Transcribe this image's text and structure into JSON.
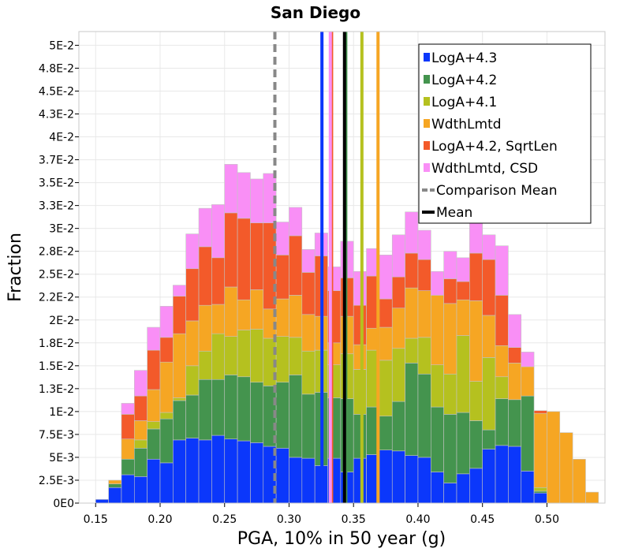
{
  "chart_data": {
    "type": "bar",
    "subtype": "stacked-histogram",
    "title": "San Diego",
    "xlabel": "PGA, 10% in 50 year (g)",
    "ylabel": "Fraction",
    "xlim": [
      0.137,
      0.545
    ],
    "ylim": [
      0,
      0.0515
    ],
    "bin_width": 0.01,
    "bin_starts": [
      0.15,
      0.16,
      0.17,
      0.18,
      0.19,
      0.2,
      0.21,
      0.22,
      0.23,
      0.24,
      0.25,
      0.26,
      0.27,
      0.28,
      0.29,
      0.3,
      0.31,
      0.32,
      0.33,
      0.34,
      0.35,
      0.36,
      0.37,
      0.38,
      0.39,
      0.4,
      0.41,
      0.42,
      0.43,
      0.44,
      0.45,
      0.46,
      0.47,
      0.48,
      0.49,
      0.5,
      0.51,
      0.52,
      0.53,
      0.54
    ],
    "x_ticks": [
      0.15,
      0.2,
      0.25,
      0.3,
      0.35,
      0.4,
      0.45,
      0.5
    ],
    "x_tick_labels": [
      "0.15",
      "0.20",
      "0.25",
      "0.30",
      "0.35",
      "0.40",
      "0.45",
      "0.50"
    ],
    "y_ticks": [
      0,
      0.0025,
      0.005,
      0.0075,
      0.01,
      0.0125,
      0.015,
      0.0175,
      0.02,
      0.0225,
      0.025,
      0.0275,
      0.03,
      0.0325,
      0.035,
      0.0375,
      0.04,
      0.0425,
      0.045,
      0.0475,
      0.05
    ],
    "y_tick_labels": [
      "0E0",
      "2.5E-3",
      "5E-3",
      "7.5E-3",
      "1E-2",
      "1.3E-2",
      "1.5E-2",
      "1.8E-2",
      "2E-2",
      "2.2E-2",
      "2.5E-2",
      "2.8E-2",
      "3E-2",
      "3.3E-2",
      "3.5E-2",
      "3.7E-2",
      "4E-2",
      "4.3E-2",
      "4.5E-2",
      "4.8E-2",
      "5E-2"
    ],
    "series": [
      {
        "name": "LogA+4.3",
        "color": "#0b37fb",
        "values": [
          0.0004,
          0.0017,
          0.0031,
          0.0029,
          0.0048,
          0.0044,
          0.0069,
          0.0071,
          0.0069,
          0.0074,
          0.007,
          0.0068,
          0.0066,
          0.0062,
          0.006,
          0.005,
          0.0049,
          0.0041,
          0.0049,
          0.0034,
          0.0049,
          0.0053,
          0.0058,
          0.0057,
          0.0052,
          0.005,
          0.0034,
          0.0022,
          0.0032,
          0.0038,
          0.0059,
          0.0063,
          0.0062,
          0.0035,
          0.0011,
          0.0,
          0.0,
          0.0,
          0.0,
          0.0
        ]
      },
      {
        "name": "LogA+4.2",
        "color": "#44944e",
        "values": [
          0.0,
          0.0004,
          0.0017,
          0.0031,
          0.0033,
          0.0048,
          0.0043,
          0.0047,
          0.0066,
          0.0061,
          0.007,
          0.007,
          0.0066,
          0.0066,
          0.0072,
          0.009,
          0.007,
          0.008,
          0.0066,
          0.008,
          0.0048,
          0.0052,
          0.0037,
          0.0054,
          0.0101,
          0.0091,
          0.0071,
          0.0075,
          0.0067,
          0.0052,
          0.0021,
          0.0051,
          0.0051,
          0.0082,
          0.0002,
          0.0,
          0.0,
          0.0,
          0.0,
          0.0
        ]
      },
      {
        "name": "LogA+4.1",
        "color": "#b5c11f",
        "values": [
          0.0,
          0.0,
          0.0,
          0.0009,
          0.0008,
          0.0007,
          0.0003,
          0.0032,
          0.0031,
          0.005,
          0.0042,
          0.0051,
          0.0058,
          0.0052,
          0.005,
          0.0041,
          0.0047,
          0.0046,
          0.0036,
          0.0049,
          0.0049,
          0.0062,
          0.0061,
          0.0058,
          0.0027,
          0.004,
          0.0046,
          0.0044,
          0.0084,
          0.0043,
          0.0079,
          0.0024,
          0.0,
          0.0,
          0.0004,
          0.0,
          0.0,
          0.0,
          0.0,
          0.0
        ]
      },
      {
        "name": "WdthLmtd",
        "color": "#f6a623",
        "values": [
          0.0,
          0.0004,
          0.0022,
          0.0021,
          0.0035,
          0.0055,
          0.007,
          0.0049,
          0.005,
          0.0032,
          0.0054,
          0.0033,
          0.0043,
          0.0032,
          0.0041,
          0.0046,
          0.004,
          0.0037,
          0.0024,
          0.0041,
          0.0027,
          0.0024,
          0.0036,
          0.0044,
          0.0055,
          0.0051,
          0.0076,
          0.0077,
          0.0039,
          0.0088,
          0.0046,
          0.0034,
          0.004,
          0.0032,
          0.0081,
          0.01,
          0.0077,
          0.0048,
          0.0012,
          0.0
        ]
      },
      {
        "name": "LogA+4.2, SqrtLen",
        "color": "#f35a2a",
        "values": [
          0.0,
          0.0,
          0.0027,
          0.0027,
          0.0043,
          0.0027,
          0.0041,
          0.0057,
          0.0064,
          0.0051,
          0.0081,
          0.0089,
          0.0073,
          0.0094,
          0.0048,
          0.0065,
          0.0046,
          0.0066,
          0.0057,
          0.0042,
          0.0043,
          0.0057,
          0.0031,
          0.0034,
          0.0038,
          0.0034,
          0.0,
          0.0027,
          0.002,
          0.0052,
          0.0061,
          0.0055,
          0.0017,
          0.0,
          0.0003,
          0.0,
          0.0,
          0.0,
          0.0,
          0.0
        ]
      },
      {
        "name": "WdthLmtd, CSD",
        "color": "#f98ff6",
        "values": [
          0.0,
          0.0,
          0.0012,
          0.0028,
          0.0025,
          0.0034,
          0.0012,
          0.0038,
          0.0042,
          0.0058,
          0.0053,
          0.005,
          0.0048,
          0.0054,
          0.0036,
          0.0031,
          0.0025,
          0.0025,
          0.0026,
          0.004,
          0.0037,
          0.003,
          0.0048,
          0.0046,
          0.0045,
          0.0032,
          0.0026,
          0.003,
          0.0026,
          0.0037,
          0.0027,
          0.0054,
          0.0036,
          0.0016,
          0.0,
          0.0,
          0.0,
          0.0,
          0.0,
          0.0
        ]
      }
    ],
    "mean_lines": [
      {
        "series": "LogA+4.3",
        "x": 0.3255,
        "color": "#0b37fb",
        "dashed": false
      },
      {
        "series": "LogA+4.2",
        "x": 0.344,
        "color": "#44944e",
        "dashed": false
      },
      {
        "series": "LogA+4.1",
        "x": 0.3565,
        "color": "#b5c11f",
        "dashed": false
      },
      {
        "series": "WdthLmtd",
        "x": 0.369,
        "color": "#f6a623",
        "dashed": false
      },
      {
        "series": "LogA+4.2, SqrtLen",
        "x": 0.333,
        "color": "#f35a2a",
        "dashed": false
      },
      {
        "series": "WdthLmtd, CSD",
        "x": 0.332,
        "color": "#f98ff6",
        "dashed": false
      },
      {
        "series": "Comparison Mean",
        "x": 0.289,
        "color": "#888888",
        "dashed": true
      },
      {
        "series": "Mean",
        "x": 0.343,
        "color": "#000000",
        "dashed": false
      }
    ],
    "legend": {
      "position": "top-right",
      "entries": [
        {
          "label": "LogA+4.3",
          "color": "#0b37fb",
          "style": "box"
        },
        {
          "label": "LogA+4.2",
          "color": "#44944e",
          "style": "box"
        },
        {
          "label": "LogA+4.1",
          "color": "#b5c11f",
          "style": "box"
        },
        {
          "label": "WdthLmtd",
          "color": "#f6a623",
          "style": "box"
        },
        {
          "label": "LogA+4.2, SqrtLen",
          "color": "#f35a2a",
          "style": "box"
        },
        {
          "label": "WdthLmtd, CSD",
          "color": "#f98ff6",
          "style": "box"
        },
        {
          "label": "Comparison Mean",
          "color": "#888888",
          "style": "dash"
        },
        {
          "label": "Mean",
          "color": "#000000",
          "style": "line"
        }
      ]
    },
    "grid": true
  }
}
